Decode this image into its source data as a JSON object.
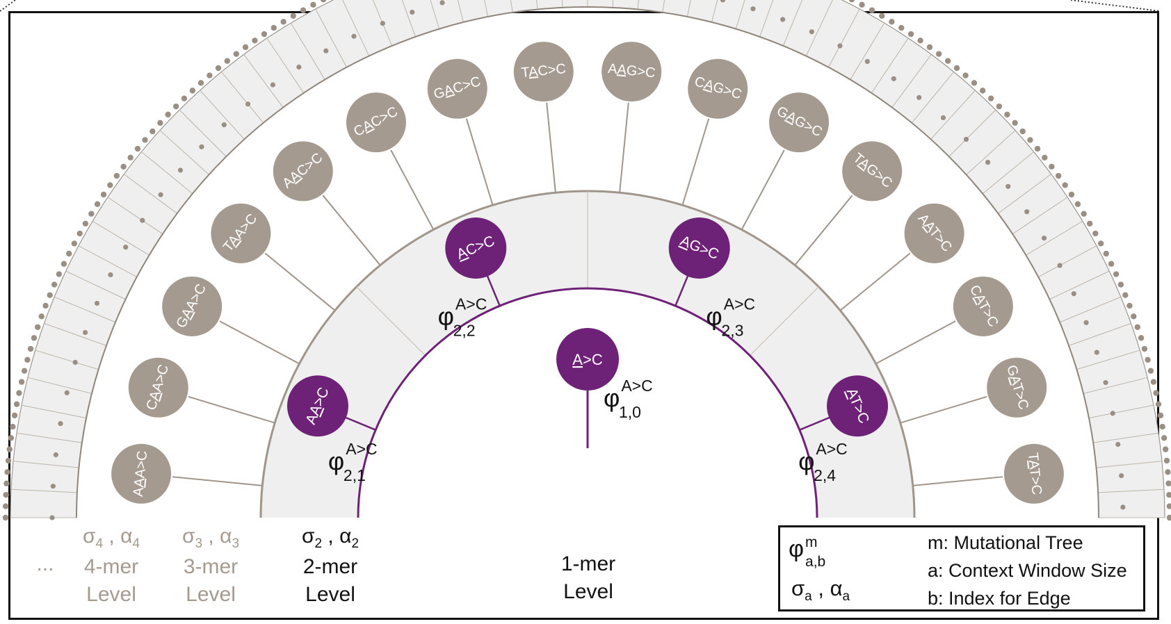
{
  "tree": {
    "root": {
      "label": "A>C",
      "underline": 0,
      "phi": {
        "sup": "A>C",
        "sub": "1,0"
      }
    },
    "level2_nodes": [
      {
        "label": "AA>C",
        "underline": 1,
        "phi": {
          "sup": "A>C",
          "sub": "2,1"
        }
      },
      {
        "label": "AC>C",
        "underline": 0,
        "phi": {
          "sup": "A>C",
          "sub": "2,2"
        }
      },
      {
        "label": "AG>C",
        "underline": 0,
        "phi": {
          "sup": "A>C",
          "sub": "2,3"
        }
      },
      {
        "label": "AT>C",
        "underline": 0,
        "phi": {
          "sup": "A>C",
          "sub": "2,4"
        }
      }
    ],
    "level3_nodes": [
      {
        "label": "AAA>C",
        "underline": 1
      },
      {
        "label": "CAA>C",
        "underline": 1
      },
      {
        "label": "GAA>C",
        "underline": 1
      },
      {
        "label": "TAA>C",
        "underline": 1
      },
      {
        "label": "AAC>C",
        "underline": 1
      },
      {
        "label": "CAC>C",
        "underline": 1
      },
      {
        "label": "GAC>C",
        "underline": 1
      },
      {
        "label": "TAC>C",
        "underline": 1
      },
      {
        "label": "AAG>C",
        "underline": 1
      },
      {
        "label": "CAG>C",
        "underline": 1
      },
      {
        "label": "GAG>C",
        "underline": 1
      },
      {
        "label": "TAG>C",
        "underline": 1
      },
      {
        "label": "AAT>C",
        "underline": 1
      },
      {
        "label": "CAT>C",
        "underline": 1
      },
      {
        "label": "GAT>C",
        "underline": 1
      },
      {
        "label": "TAT>C",
        "underline": 1
      }
    ]
  },
  "levels": [
    {
      "params": {
        "sigma": "σ",
        "alpha": "α",
        "index": "4"
      },
      "name": "4-mer",
      "word": "Level",
      "color": "#a59a8f"
    },
    {
      "params": {
        "sigma": "σ",
        "alpha": "α",
        "index": "3"
      },
      "name": "3-mer",
      "word": "Level",
      "color": "#a59a8f"
    },
    {
      "params": {
        "sigma": "σ",
        "alpha": "α",
        "index": "2"
      },
      "name": "2-mer",
      "word": "Level",
      "color": "#111111"
    },
    {
      "name": "1-mer",
      "word": "Level",
      "color": "#111111"
    }
  ],
  "ellipsis": "...",
  "legend": {
    "phi_symbol": "φ",
    "phi_sup": "m",
    "phi_sub": "a,b",
    "sigma_alpha": {
      "sigma": "σ",
      "alpha": "α",
      "sub": "a"
    },
    "items": [
      "m: Mutational Tree",
      "a: Context Window Size",
      "b: Index for Edge"
    ]
  },
  "colors": {
    "purple": "#6e2277",
    "taupe": "#a59a8f",
    "ring_fill": "#efefef",
    "line": "#a0958a"
  }
}
